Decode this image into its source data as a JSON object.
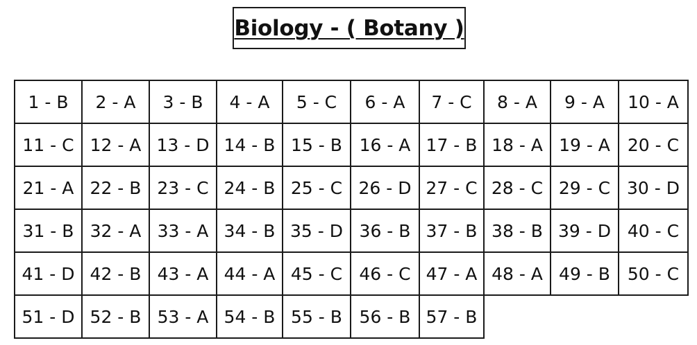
{
  "title": "Biology - ( Botany )",
  "answers": [
    [
      "1 - B",
      "2 - A",
      "3 - B",
      "4 - A",
      "5 - C",
      "6 - A",
      "7 - C",
      "8 - A",
      "9 - A",
      "10 - A"
    ],
    [
      "11 - C",
      "12 - A",
      "13 - D",
      "14 - B",
      "15 - B",
      "16 - A",
      "17 - B",
      "18 - A",
      "19 - A",
      "20 - C"
    ],
    [
      "21 - A",
      "22 - B",
      "23 - C",
      "24 - B",
      "25 - C",
      "26 - D",
      "27 - C",
      "28 - C",
      "29 - C",
      "30 - D"
    ],
    [
      "31 - B",
      "32 - A",
      "33 - A",
      "34 - B",
      "35 - D",
      "36 - B",
      "37 - B",
      "38 - B",
      "39 - D",
      "40 - C"
    ],
    [
      "41 - D",
      "42 - B",
      "43 - A",
      "44 - A",
      "45 - C",
      "46 - C",
      "47 - A",
      "48 - A",
      "49 - B",
      "50 - C"
    ],
    [
      "51 - D",
      "52 - B",
      "53 - A",
      "54 - B",
      "55 - B",
      "56 - B",
      "57 - B"
    ]
  ]
}
